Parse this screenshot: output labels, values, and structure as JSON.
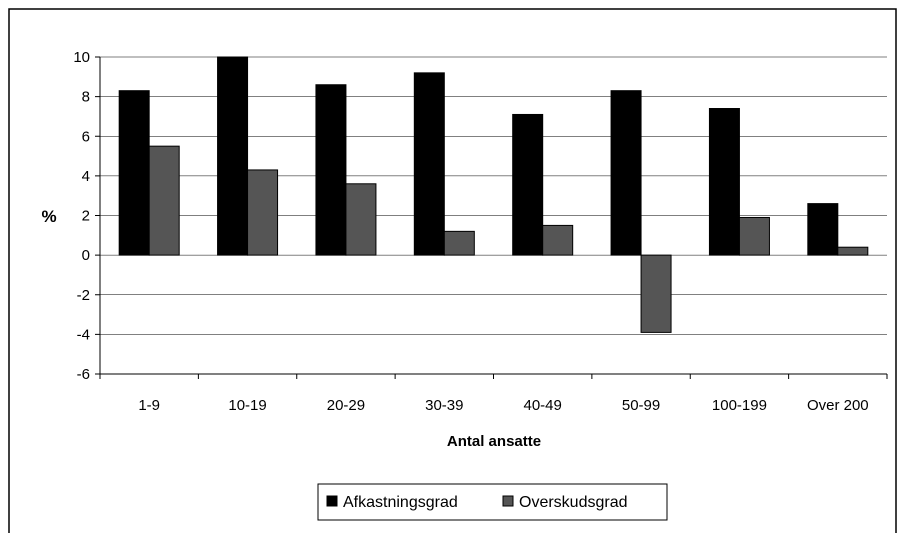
{
  "chart_data": {
    "type": "bar",
    "categories": [
      "1-9",
      "10-19",
      "20-29",
      "30-39",
      "40-49",
      "50-99",
      "100-199",
      "Over 200"
    ],
    "series": [
      {
        "name": "Afkastningsgrad",
        "color": "#000000",
        "values": [
          8.3,
          10.0,
          8.6,
          9.2,
          7.1,
          8.3,
          7.4,
          2.6
        ]
      },
      {
        "name": "Overskudsgrad",
        "color": "#555555",
        "values": [
          5.5,
          4.3,
          3.6,
          1.2,
          1.5,
          -3.9,
          1.9,
          0.4
        ]
      }
    ],
    "xlabel": "Antal ansatte",
    "ylabel": "%",
    "ylim": [
      -6,
      10
    ],
    "yticks": [
      "-6",
      "-4",
      "-2",
      "0",
      "2",
      "4",
      "6",
      "8",
      "10"
    ],
    "grid": "horizontal",
    "legend": "bottom"
  }
}
